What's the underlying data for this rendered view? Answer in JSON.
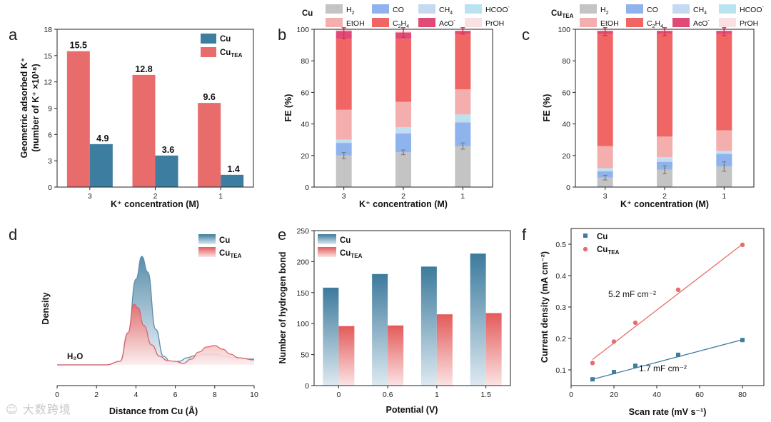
{
  "colors": {
    "cu": "#3d7d9f",
    "cutea": "#e86c6c",
    "H2": "#c4c4c4",
    "CO": "#8fb3ec",
    "CH4": "#c5daf2",
    "HCOO": "#b9e3f1",
    "EtOH": "#f4aeae",
    "C2H4": "#ef6664",
    "AcO": "#e04a76",
    "PrOH": "#fbe0e3",
    "err_red": "#e0304a",
    "err_grey": "#777777"
  },
  "panel_letters": [
    "a",
    "b",
    "c",
    "d",
    "e",
    "f"
  ],
  "watermark": "大数跨境",
  "chart_data": [
    {
      "id": "a",
      "type": "bar",
      "categories": [
        "3",
        "2",
        "1"
      ],
      "series": [
        {
          "name": "Cu",
          "sub": "",
          "values": [
            4.9,
            3.6,
            1.4
          ],
          "labels": [
            "4.9",
            "3.6",
            "1.4"
          ]
        },
        {
          "name": "Cu",
          "sub": "TEA",
          "values": [
            15.5,
            12.8,
            9.6
          ],
          "labels": [
            "15.5",
            "12.8",
            "9.6"
          ]
        }
      ],
      "xlabel": "K⁺ concentration (M)",
      "ylabel_line1": "Geometric adsorbed K⁺",
      "ylabel_line2": "(number of K⁺ ×10¹⁸)",
      "ylim": [
        0,
        18
      ],
      "yticks": [
        "0",
        "3",
        "6",
        "9",
        "12",
        "15",
        "18"
      ]
    },
    {
      "id": "b",
      "type": "stacked-bar",
      "title": "Cu",
      "title_sub": "",
      "categories": [
        "3",
        "2",
        "1"
      ],
      "legend": [
        {
          "key": "H2",
          "text": "H",
          "sub": "2",
          "sup": ""
        },
        {
          "key": "CO",
          "text": "CO",
          "sub": "",
          "sup": ""
        },
        {
          "key": "CH4",
          "text": "CH",
          "sub": "4",
          "sup": ""
        },
        {
          "key": "HCOO",
          "text": "HCOO",
          "sub": "",
          "sup": "-"
        },
        {
          "key": "EtOH",
          "text": "EtOH",
          "sub": "",
          "sup": ""
        },
        {
          "key": "C2H4",
          "text": "C",
          "sub": "2",
          "text2": "H",
          "sub2": "4",
          "sup": ""
        },
        {
          "key": "AcO",
          "text": "AcO",
          "sub": "",
          "sup": "-"
        },
        {
          "key": "PrOH",
          "text": "PrOH",
          "sub": "",
          "sup": ""
        }
      ],
      "stacks": [
        {
          "H2": 20,
          "CO": 8,
          "CH4": 1,
          "HCOO": 1,
          "EtOH": 19,
          "C2H4": 45,
          "AcO": 5,
          "PrOH": 1
        },
        {
          "H2": 22,
          "CO": 12,
          "CH4": 2,
          "HCOO": 2,
          "EtOH": 16,
          "C2H4": 40,
          "AcO": 4,
          "PrOH": 1
        },
        {
          "H2": 26,
          "CO": 15,
          "CH4": 2,
          "HCOO": 3,
          "EtOH": 16,
          "C2H4": 35,
          "AcO": 2,
          "PrOH": 0
        }
      ],
      "errors_total": [
        6,
        4,
        2
      ],
      "errors_h2": [
        2,
        1.5,
        2
      ],
      "xlabel": "K⁺ concentration (M)",
      "ylabel": "FE (%)",
      "ylim": [
        0,
        100
      ],
      "yticks": [
        "0",
        "20",
        "40",
        "60",
        "80",
        "100"
      ]
    },
    {
      "id": "c",
      "type": "stacked-bar",
      "title": "Cu",
      "title_sub": "TEA",
      "categories": [
        "3",
        "2",
        "1"
      ],
      "stacks": [
        {
          "H2": 6,
          "CO": 4,
          "CH4": 1,
          "HCOO": 1,
          "EtOH": 14,
          "C2H4": 71,
          "AcO": 2,
          "PrOH": 0
        },
        {
          "H2": 11,
          "CO": 5,
          "CH4": 2,
          "HCOO": 1,
          "EtOH": 13,
          "C2H4": 65,
          "AcO": 2,
          "PrOH": 0
        },
        {
          "H2": 13,
          "CO": 8,
          "CH4": 1,
          "HCOO": 1,
          "EtOH": 13,
          "C2H4": 61,
          "AcO": 2,
          "PrOH": 0
        }
      ],
      "errors_total": [
        3,
        3,
        3
      ],
      "errors_h2": [
        1.5,
        2.5,
        3
      ],
      "xlabel": "K⁺ concentration (M)",
      "ylabel": "FE (%)",
      "ylim": [
        0,
        100
      ],
      "yticks": [
        "0",
        "20",
        "40",
        "60",
        "80",
        "100"
      ]
    },
    {
      "id": "d",
      "type": "area",
      "series": [
        {
          "name": "Cu",
          "sub": "",
          "x": [
            0,
            2.5,
            3.2,
            3.6,
            4.0,
            4.3,
            4.6,
            5.0,
            5.4,
            5.8,
            6.2,
            6.6,
            7.0,
            7.5,
            8.0,
            8.5,
            9.0,
            10.0
          ],
          "y": [
            0,
            0,
            0.05,
            0.45,
            1.2,
            1.52,
            1.3,
            0.5,
            0.12,
            0.03,
            0.05,
            0.1,
            0.13,
            0.15,
            0.15,
            0.12,
            0.1,
            0.08
          ]
        },
        {
          "name": "Cu",
          "sub": "TEA",
          "x": [
            0,
            2.5,
            3.2,
            3.6,
            3.9,
            4.1,
            4.4,
            4.8,
            5.2,
            5.6,
            6.0,
            6.4,
            6.8,
            7.2,
            7.6,
            8.0,
            8.4,
            8.8,
            9.2,
            10.0
          ],
          "y": [
            0,
            0,
            0.05,
            0.45,
            0.85,
            0.8,
            0.55,
            0.28,
            0.12,
            0.06,
            0.05,
            0.02,
            0.08,
            0.18,
            0.25,
            0.27,
            0.22,
            0.15,
            0.1,
            0.07
          ]
        }
      ],
      "annotation": "H₂O",
      "xlabel": "Distance from Cu (Å)",
      "ylabel": "Density",
      "xlim": [
        0,
        10
      ],
      "xticks": [
        "0",
        "2",
        "4",
        "6",
        "8",
        "10"
      ]
    },
    {
      "id": "e",
      "type": "bar",
      "categories": [
        "0",
        "0.6",
        "1",
        "1.5"
      ],
      "series": [
        {
          "name": "Cu",
          "sub": "",
          "values": [
            158,
            180,
            192,
            213
          ]
        },
        {
          "name": "Cu",
          "sub": "TEA",
          "values": [
            96,
            97,
            115,
            117
          ]
        }
      ],
      "xlabel": "Potential (V)",
      "ylabel": "Number of hydrogen bond",
      "ylim": [
        0,
        250
      ],
      "yticks": [
        "0",
        "50",
        "100",
        "150",
        "200",
        "250"
      ]
    },
    {
      "id": "f",
      "type": "scatter",
      "series": [
        {
          "name": "Cu",
          "sub": "",
          "x": [
            10,
            20,
            30,
            50,
            80
          ],
          "y": [
            0.07,
            0.093,
            0.113,
            0.148,
            0.195
          ],
          "fit": [
            0.07,
            0.196
          ],
          "slope_label": "1.7 mF cm⁻²"
        },
        {
          "name": "Cu",
          "sub": "TEA",
          "x": [
            10,
            20,
            30,
            50,
            80
          ],
          "y": [
            0.122,
            0.19,
            0.25,
            0.355,
            0.498
          ],
          "fit": [
            0.133,
            0.5
          ],
          "slope_label": "5.2 mF cm⁻²"
        }
      ],
      "xlabel": "Scan rate (mV s⁻¹)",
      "ylabel": "Current density (mA cm⁻²)",
      "xlim": [
        0,
        90
      ],
      "ylim": [
        0.05,
        0.55
      ],
      "xticks": [
        "0",
        "20",
        "40",
        "60",
        "80"
      ],
      "yticks": [
        "0.1",
        "0.2",
        "0.3",
        "0.4",
        "0.5"
      ]
    }
  ]
}
